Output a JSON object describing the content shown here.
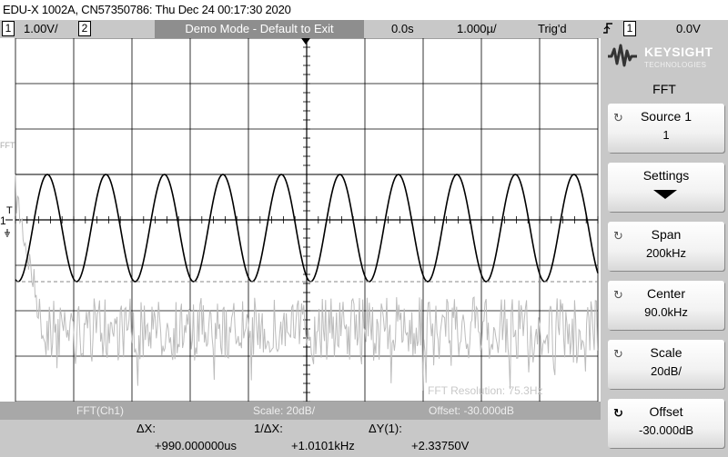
{
  "title_bar": {
    "text": "EDU-X 1002A, CN57350786: Thu Dec 24 00:17:30 2020"
  },
  "status_bar": {
    "ch1_number": "1",
    "ch1_scale": "1.00V/",
    "ch2_number": "2",
    "demo_banner": "Demo Mode - Default to Exit",
    "time_delay": "0.0s",
    "time_base": "1.000µ/",
    "trigger_status": "Trig'd",
    "trigger_slope_icon": "rising-edge-icon",
    "trigger_channel": "1",
    "trigger_level": "0.0V"
  },
  "screen": {
    "fft_marker": "FFT",
    "trigger_marker": "T",
    "ch1_marker": "1",
    "fft_resolution": "FFT Resolution: 75.3Hz"
  },
  "bottom_bar": {
    "source": "FFT(Ch1)",
    "scale": "Scale: 20dB/",
    "offset": "Offset: -30.000dB"
  },
  "cursors": {
    "dx_label": "ΔX:",
    "dx_value": "+990.000000us",
    "inv_dx_label": "1/ΔX:",
    "inv_dx_value": "+1.0101kHz",
    "dy_label": "ΔY(1):",
    "dy_value": "+2.33750V"
  },
  "side_panel": {
    "logo_icon": "keysight-wave-icon",
    "brand": "KEYSIGHT",
    "brand_sub": "TECHNOLOGIES",
    "menu_title": "FFT",
    "softkeys": [
      {
        "label": "Source 1",
        "value": "1",
        "icon": "rotate-icon"
      },
      {
        "label": "Settings",
        "value": "",
        "icon": "down-arrow-icon"
      },
      {
        "label": "Span",
        "value": "200kHz",
        "icon": "rotate-icon"
      },
      {
        "label": "Center",
        "value": "90.0kHz",
        "icon": "rotate-icon"
      },
      {
        "label": "Scale",
        "value": "20dB/",
        "icon": "rotate-icon"
      },
      {
        "label": "Offset",
        "value": "-30.000dB",
        "icon": "rotate-icon"
      }
    ]
  },
  "colors": {
    "status_bar_bg": "#c8c8c8",
    "demo_banner_bg": "#8e8e8e",
    "bottom_bar_bg": "#a8a8a8",
    "trace_ch1": "#000000",
    "trace_fft": "#bbbbbb",
    "grid": "#000000"
  }
}
